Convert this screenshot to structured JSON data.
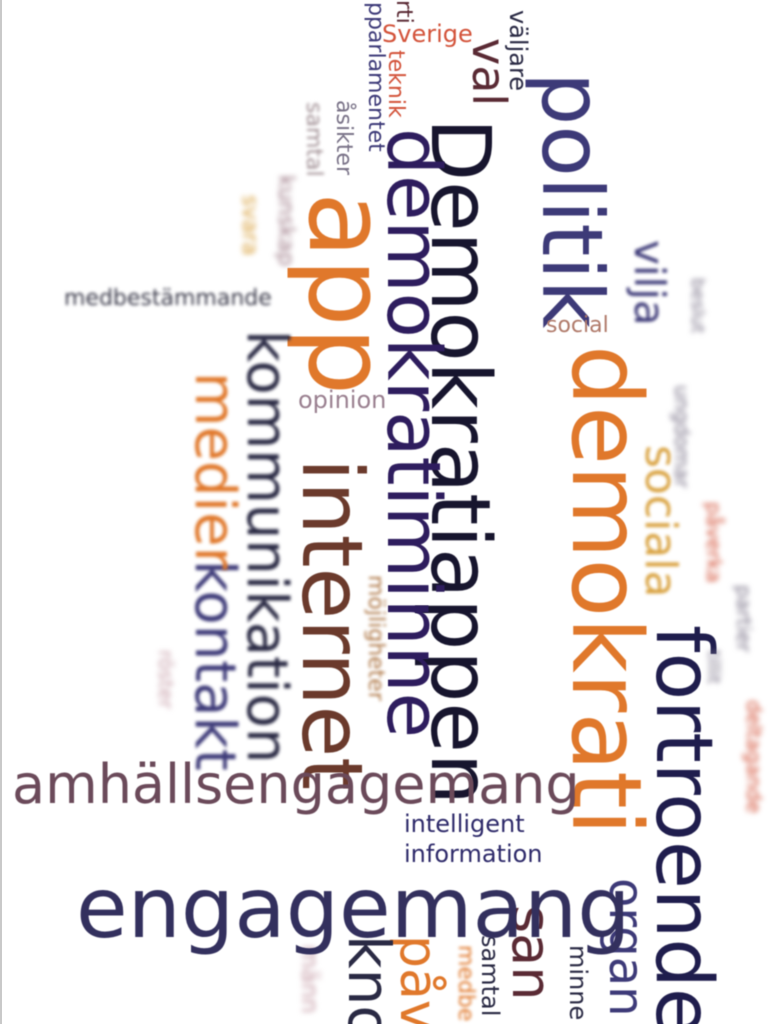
{
  "colors": {
    "navy": "#1f1d4d",
    "purple": "#2e1d5e",
    "indigo": "#3d3a78",
    "orange": "#e0782b",
    "brown": "#6b3a2c",
    "maroon": "#5a2a34",
    "dark": "#17152e",
    "red": "#d3533a"
  },
  "words": [
    "Demokratiappen",
    "demokratiminne",
    "demokrati",
    "politik",
    "app",
    "internet",
    "kommunikation",
    "kontakt",
    "medier",
    "fortroende",
    "engagemang",
    "amhällsengagemang",
    "sociala",
    "vilja",
    "val",
    "väljare",
    "Sverige",
    "teknik",
    "pparlamentet",
    "åsikter",
    "samtal",
    "kunskap",
    "medbestämmande",
    "social",
    "opinion",
    "möjligheter",
    "intelligent",
    "information",
    "organ",
    "san",
    "påv",
    "kno",
    "samtal",
    "medbe",
    "minne",
    "männ",
    "rti",
    "ungdomar",
    "påverka",
    "partier",
    "tillit",
    "deltagande",
    "svara",
    "beslut",
    "röster"
  ]
}
